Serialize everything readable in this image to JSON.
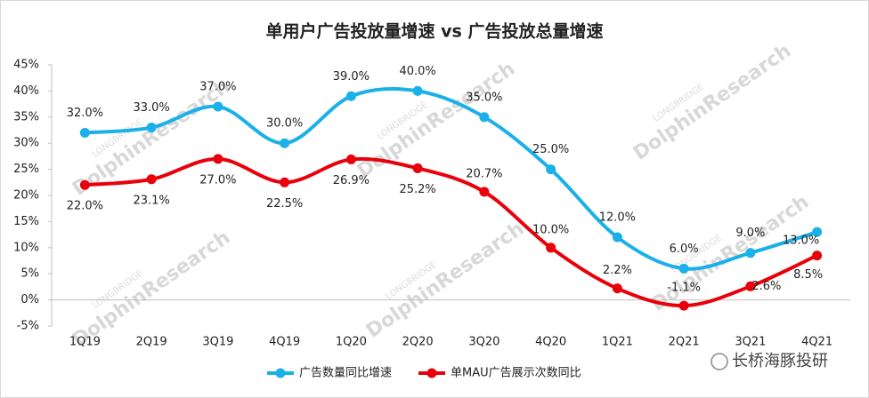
{
  "chart_data": {
    "type": "line",
    "title": "单用户广告投放量增速 vs 广告投放总量增速",
    "categories": [
      "1Q19",
      "2Q19",
      "3Q19",
      "4Q19",
      "1Q20",
      "2Q20",
      "3Q20",
      "4Q20",
      "1Q21",
      "2Q21",
      "3Q21",
      "4Q21"
    ],
    "series": [
      {
        "name": "广告数量同比增速",
        "color": "#1ab0e8",
        "values": [
          32,
          33,
          37,
          30,
          39,
          40,
          35,
          25,
          12,
          6,
          9,
          13
        ],
        "value_labels": [
          "32.0%",
          "33.0%",
          "37.0%",
          "30.0%",
          "39.0%",
          "40.0%",
          "35.0%",
          "25.0%",
          "12.0%",
          "6.0%",
          "9.0%",
          "13.0%"
        ]
      },
      {
        "name": "单MAU广告展示次数同比",
        "color": "#e8000b",
        "values": [
          22,
          23.1,
          27,
          22.5,
          26.9,
          25.2,
          20.7,
          10,
          2.2,
          -1.1,
          2.6,
          8.5
        ],
        "value_labels": [
          "22.0%",
          "23.1%",
          "27.0%",
          "22.5%",
          "26.9%",
          "25.2%",
          "20.7%",
          "10.0%",
          "2.2%",
          "-1.1%",
          "2.6%",
          "8.5%"
        ]
      }
    ],
    "ylim": [
      -5,
      45
    ],
    "yticks": [
      {
        "value": -5,
        "label": "-5%"
      },
      {
        "value": 0,
        "label": "0%"
      },
      {
        "value": 5,
        "label": "5%"
      },
      {
        "value": 10,
        "label": "10%"
      },
      {
        "value": 15,
        "label": "15%"
      },
      {
        "value": 20,
        "label": "20%"
      },
      {
        "value": 25,
        "label": "25%"
      },
      {
        "value": 30,
        "label": "30%"
      },
      {
        "value": 35,
        "label": "35%"
      },
      {
        "value": 40,
        "label": "40%"
      },
      {
        "value": 45,
        "label": "45%"
      }
    ],
    "grid": false,
    "smooth": true,
    "legend": "bottom",
    "watermark": "DolphinResearch",
    "watermark_small": "LONGBRIDGE",
    "brand": "长桥海豚投研"
  }
}
